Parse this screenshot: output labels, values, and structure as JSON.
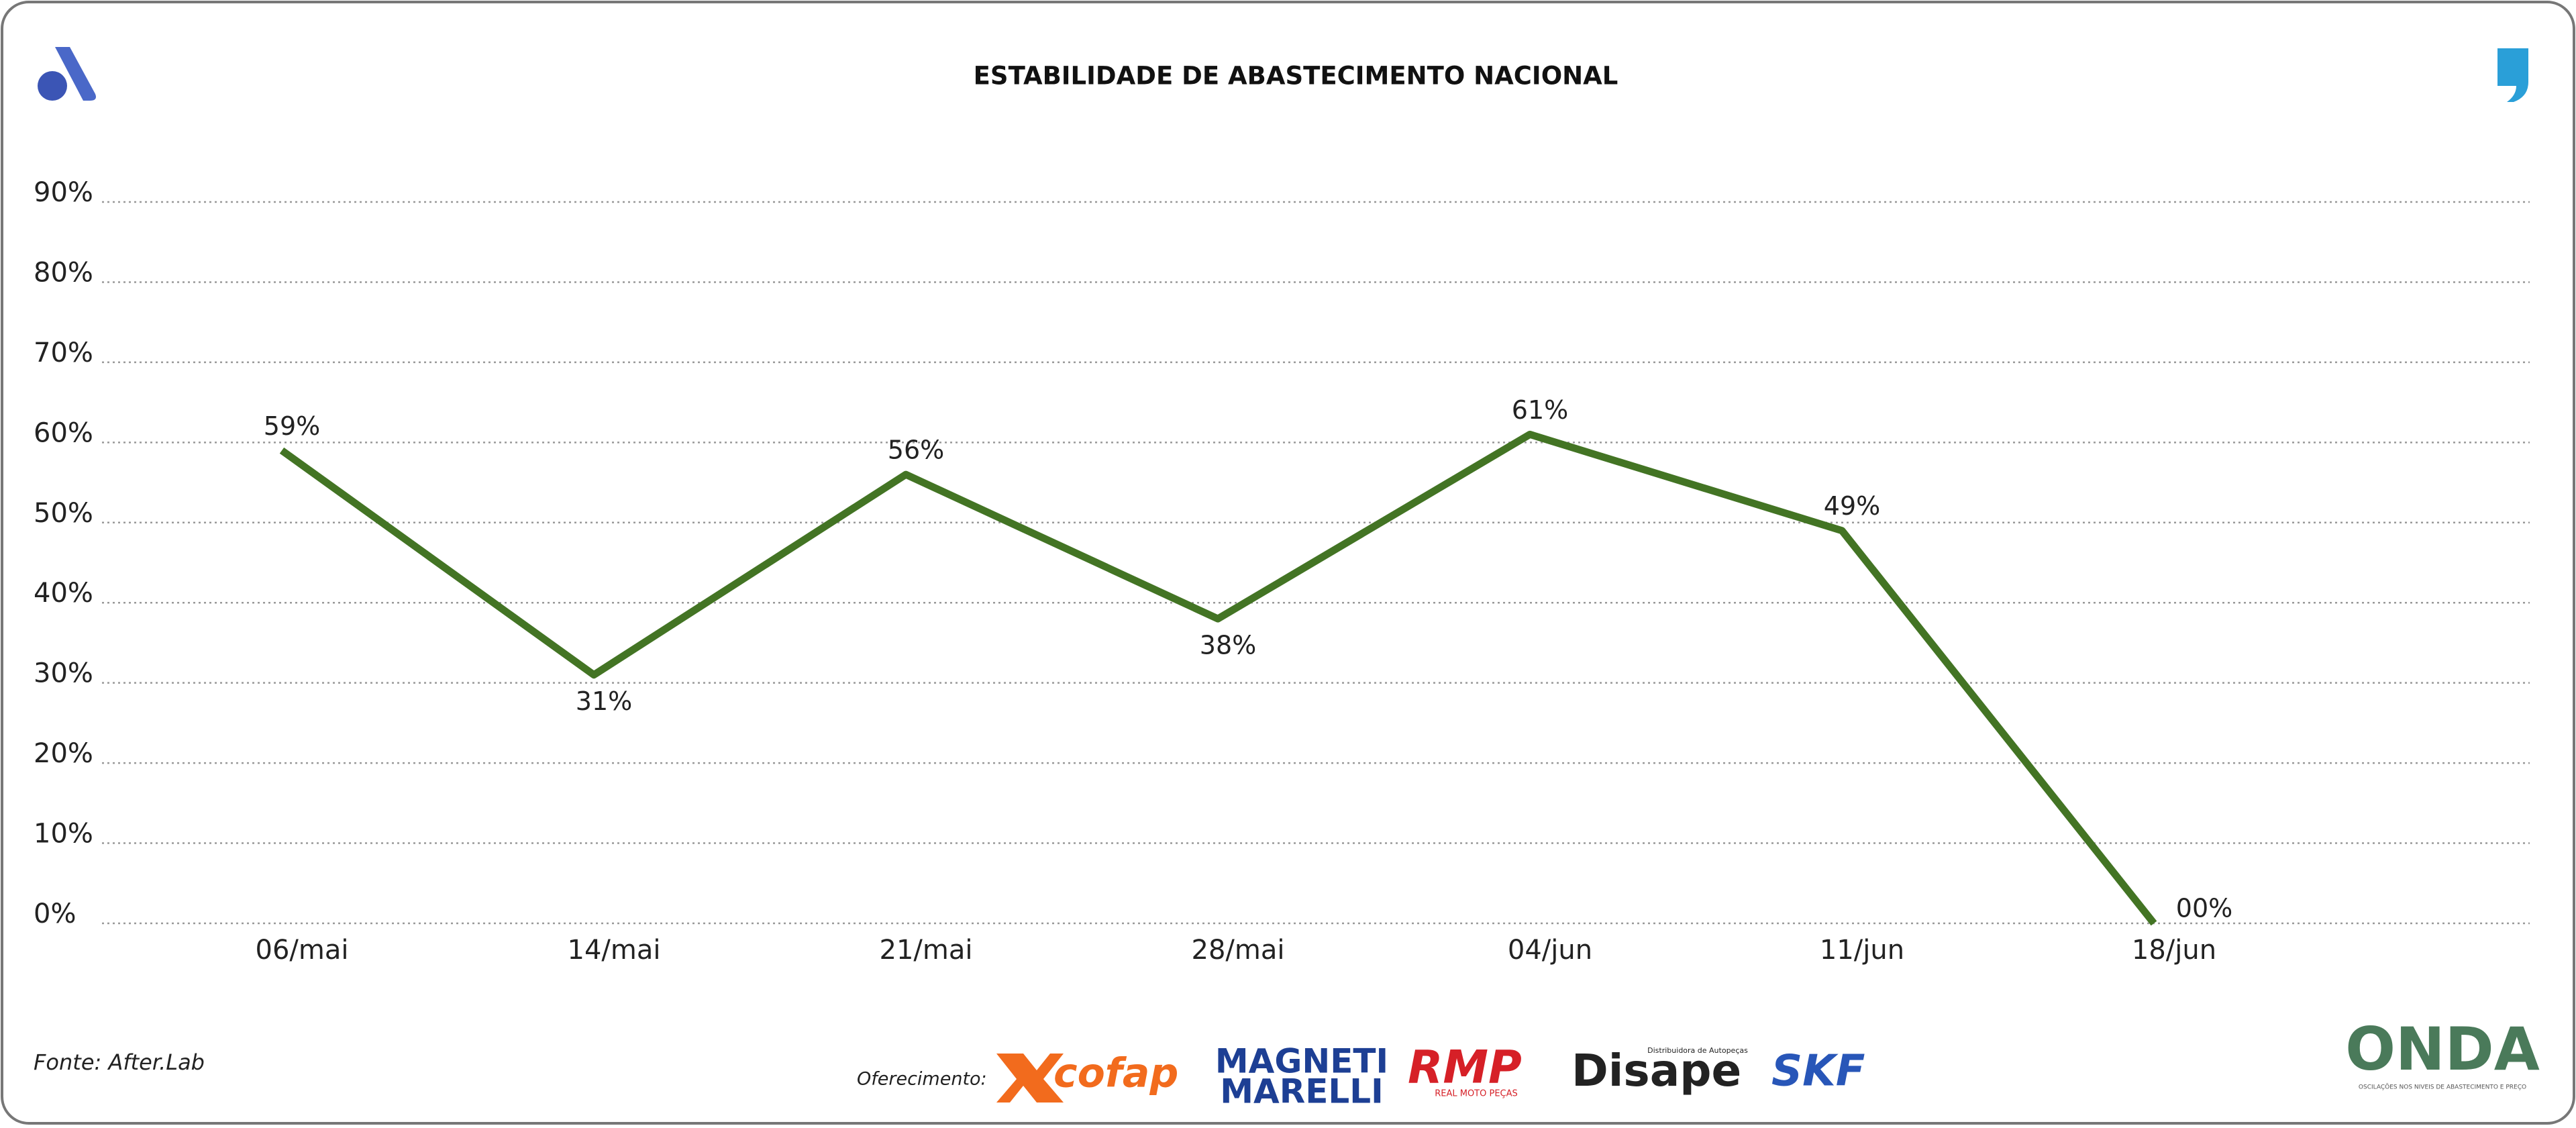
{
  "chart_data": {
    "type": "line",
    "title": "ESTABILIDADE DE ABASTECIMENTO NACIONAL",
    "categories": [
      "06/mai",
      "14/mai",
      "21/mai",
      "28/mai",
      "04/jun",
      "11/jun",
      "18/jun"
    ],
    "values": [
      59,
      31,
      56,
      38,
      61,
      49,
      0
    ],
    "value_labels": [
      "59%",
      "31%",
      "56%",
      "38%",
      "61%",
      "49%",
      "00%"
    ],
    "color": "#437424",
    "ylim": [
      0,
      90
    ],
    "yticks": [
      {
        "value": 0,
        "label": "0%"
      },
      {
        "value": 10,
        "label": "10%"
      },
      {
        "value": 20,
        "label": "20%"
      },
      {
        "value": 30,
        "label": "30%"
      },
      {
        "value": 40,
        "label": "40%"
      },
      {
        "value": 50,
        "label": "50%"
      },
      {
        "value": 60,
        "label": "60%"
      },
      {
        "value": 70,
        "label": "70%"
      },
      {
        "value": 80,
        "label": "80%"
      },
      {
        "value": 90,
        "label": "90%"
      }
    ],
    "grid": true
  },
  "footer": {
    "source": "Fonte: After.Lab",
    "sponsor_label": "Oferecimento:",
    "sponsors": [
      "cofap",
      "MAGNETI",
      "MARELLI",
      "RMP",
      "REAL MOTO PEÇAS",
      "Disape",
      "Distribuidora de Autopeças",
      "SKF"
    ]
  },
  "brand": {
    "name": "ONDA",
    "tagline": "OSCILAÇÕES NOS NIVEIS DE ABASTECIMENTO E PREÇO"
  }
}
